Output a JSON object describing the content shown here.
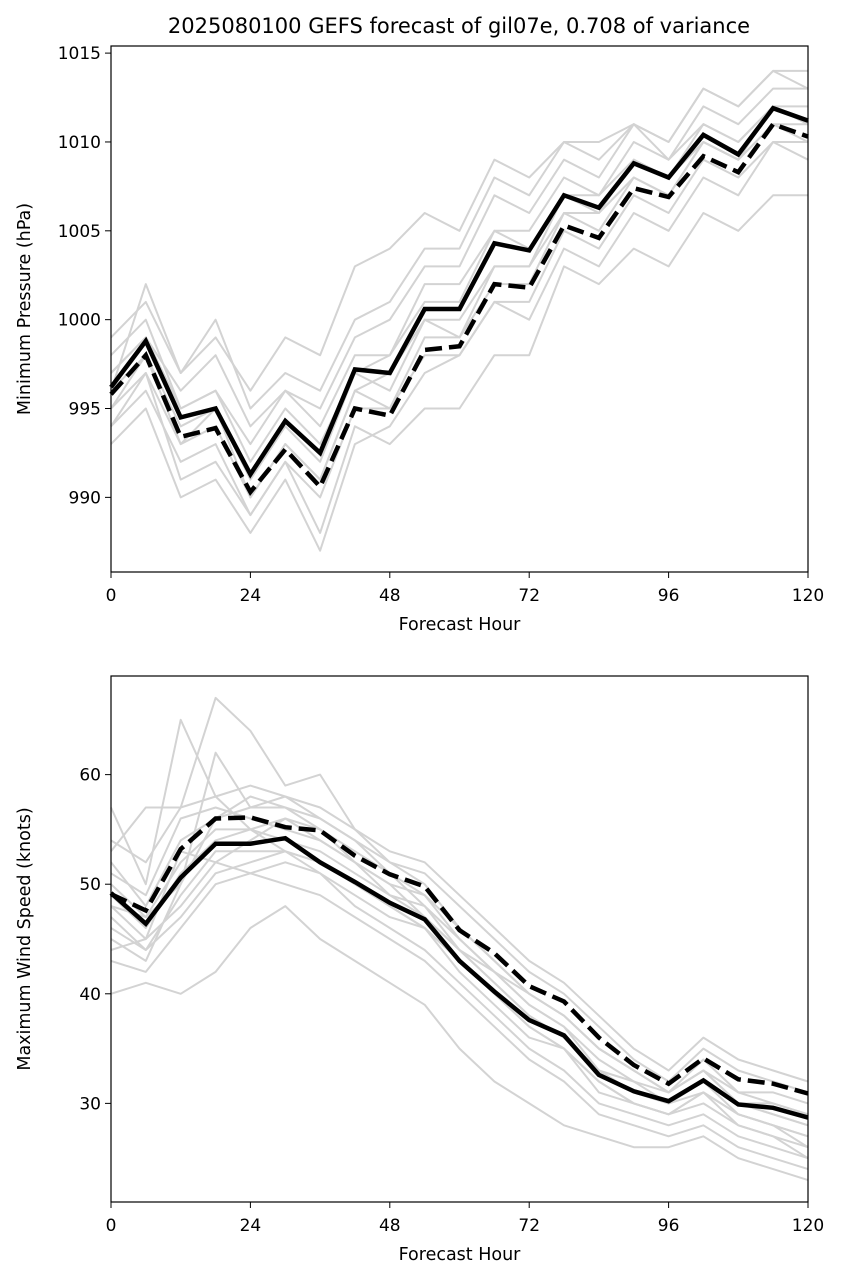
{
  "title": "2025080100 GEFS forecast of gil07e, 0.708 of variance",
  "chart_data": [
    {
      "type": "line",
      "xlabel": "Forecast Hour",
      "ylabel": "Minimum Pressure (hPa)",
      "xlim": [
        0,
        120
      ],
      "ylim": [
        985.8,
        1015.4
      ],
      "xticks": [
        0,
        24,
        48,
        72,
        96,
        120
      ],
      "yticks": [
        990,
        995,
        1000,
        1005,
        1010,
        1015
      ],
      "x": [
        0,
        6,
        12,
        18,
        24,
        30,
        36,
        42,
        48,
        54,
        60,
        66,
        72,
        78,
        84,
        90,
        96,
        102,
        108,
        114,
        120
      ],
      "series": [
        {
          "style": "solid",
          "values": [
            996.2,
            998.8,
            994.5,
            995.0,
            991.3,
            994.3,
            992.5,
            997.2,
            997.0,
            1000.6,
            1000.6,
            1004.3,
            1003.9,
            1007.0,
            1006.3,
            1008.8,
            1008.0,
            1010.4,
            1009.3,
            1011.9,
            1011.2
          ]
        },
        {
          "style": "dashed",
          "values": [
            995.8,
            998.0,
            993.4,
            993.9,
            990.3,
            992.7,
            990.6,
            995.0,
            994.6,
            998.3,
            998.5,
            1002.0,
            1001.8,
            1005.3,
            1004.6,
            1007.4,
            1006.9,
            1009.2,
            1008.3,
            1011.0,
            1010.3
          ]
        }
      ],
      "members": [
        [
          996,
          1002,
          997,
          999,
          996,
          999,
          998,
          1003,
          1004,
          1006,
          1005,
          1009,
          1008,
          1010,
          1010,
          1011,
          1010,
          1013,
          1012,
          1014,
          1014
        ],
        [
          993,
          995,
          990,
          991,
          988,
          991,
          987,
          993,
          994,
          997,
          998,
          1001,
          1000,
          1004,
          1003,
          1006,
          1005,
          1008,
          1007,
          1010,
          1009
        ],
        [
          994,
          997,
          991,
          992,
          989,
          992,
          988,
          994,
          993,
          995,
          995,
          998,
          998,
          1003,
          1002,
          1004,
          1003,
          1006,
          1005,
          1007,
          1007
        ],
        [
          997,
          999,
          996,
          998,
          994,
          996,
          995,
          999,
          1000,
          1003,
          1003,
          1007,
          1006,
          1009,
          1008,
          1011,
          1009,
          1012,
          1011,
          1013,
          1013
        ],
        [
          995,
          997,
          993,
          994,
          990,
          993,
          991,
          996,
          995,
          999,
          999,
          1002,
          1002,
          1006,
          1005,
          1008,
          1007,
          1010,
          1009,
          1011,
          1011
        ],
        [
          998,
          1000,
          995,
          996,
          992,
          995,
          993,
          997,
          998,
          1001,
          1001,
          1005,
          1004,
          1007,
          1007,
          1009,
          1008,
          1011,
          1010,
          1012,
          1012
        ],
        [
          996,
          998,
          994,
          995,
          991,
          994,
          992,
          997,
          996,
          1000,
          1000,
          1003,
          1003,
          1006,
          1006,
          1008,
          1007,
          1010,
          1009,
          1011,
          1010
        ],
        [
          999,
          1001,
          997,
          1000,
          995,
          997,
          996,
          1000,
          1001,
          1004,
          1004,
          1008,
          1007,
          1010,
          1009,
          1011,
          1010,
          1013,
          1012,
          1014,
          1013
        ],
        [
          994,
          996,
          992,
          993,
          989,
          992,
          990,
          995,
          995,
          998,
          998,
          1001,
          1001,
          1005,
          1004,
          1007,
          1006,
          1009,
          1008,
          1010,
          1010
        ],
        [
          997,
          999,
          995,
          996,
          993,
          996,
          994,
          998,
          998,
          1002,
          1002,
          1005,
          1005,
          1008,
          1007,
          1010,
          1009,
          1011,
          1010,
          1012,
          1011
        ],
        [
          995,
          998,
          993,
          995,
          990,
          993,
          991,
          996,
          997,
          1000,
          999,
          1003,
          1003,
          1007,
          1006,
          1009,
          1008,
          1010,
          1009,
          1012,
          1011
        ]
      ]
    },
    {
      "type": "line",
      "xlabel": "Forecast Hour",
      "ylabel": "Maximum Wind Speed (knots)",
      "xlim": [
        0,
        120
      ],
      "ylim": [
        21,
        69
      ],
      "xticks": [
        0,
        24,
        48,
        72,
        96,
        120
      ],
      "yticks": [
        30,
        40,
        50,
        60
      ],
      "x": [
        0,
        6,
        12,
        18,
        24,
        30,
        36,
        42,
        48,
        54,
        60,
        66,
        72,
        78,
        84,
        90,
        96,
        102,
        108,
        114,
        120
      ],
      "series": [
        {
          "style": "solid",
          "values": [
            49.2,
            46.4,
            50.6,
            53.7,
            53.7,
            54.2,
            52.0,
            50.2,
            48.3,
            46.8,
            43.0,
            40.2,
            37.6,
            36.2,
            32.6,
            31.1,
            30.2,
            32.1,
            29.9,
            29.6,
            28.7
          ]
        },
        {
          "style": "dashed",
          "values": [
            49.1,
            47.6,
            53.2,
            56.0,
            56.1,
            55.2,
            54.9,
            52.6,
            50.9,
            49.8,
            45.8,
            43.7,
            40.7,
            39.3,
            36.0,
            33.5,
            31.8,
            34.1,
            32.2,
            31.8,
            30.9
          ]
        }
      ],
      "members": [
        [
          57,
          50,
          65,
          58,
          55,
          53,
          52,
          50,
          48,
          46,
          43,
          40,
          37,
          35,
          32,
          30,
          29,
          31,
          28,
          27,
          25
        ],
        [
          40,
          41,
          40,
          42,
          46,
          48,
          45,
          43,
          41,
          39,
          35,
          32,
          30,
          28,
          27,
          26,
          26,
          27,
          25,
          24,
          23
        ],
        [
          53,
          57,
          57,
          67,
          64,
          59,
          60,
          55,
          52,
          50,
          46,
          43,
          40,
          38,
          35,
          33,
          31,
          33,
          30,
          29,
          28
        ],
        [
          45,
          43,
          50,
          62,
          57,
          58,
          56,
          54,
          51,
          49,
          45,
          42,
          39,
          37,
          33,
          31,
          30,
          32,
          29,
          28,
          27
        ],
        [
          48,
          45,
          48,
          52,
          54,
          56,
          55,
          52,
          50,
          47,
          44,
          41,
          38,
          36,
          33,
          31,
          30,
          31,
          29,
          28,
          26
        ],
        [
          52,
          48,
          54,
          56,
          58,
          57,
          56,
          54,
          52,
          51,
          48,
          45,
          42,
          40,
          37,
          34,
          32,
          35,
          33,
          32,
          31
        ],
        [
          43,
          42,
          46,
          50,
          51,
          52,
          51,
          48,
          46,
          44,
          41,
          38,
          35,
          33,
          30,
          29,
          28,
          29,
          27,
          26,
          25
        ],
        [
          50,
          47,
          52,
          55,
          55,
          54,
          53,
          51,
          49,
          47,
          44,
          41,
          38,
          36,
          33,
          32,
          31,
          33,
          30,
          30,
          29
        ],
        [
          47,
          44,
          49,
          53,
          53,
          53,
          51,
          49,
          47,
          46,
          42,
          39,
          36,
          35,
          31,
          30,
          29,
          31,
          29,
          28,
          27
        ],
        [
          51,
          49,
          56,
          57,
          56,
          55,
          54,
          52,
          50,
          49,
          46,
          43,
          40,
          38,
          35,
          33,
          31,
          34,
          31,
          31,
          30
        ],
        [
          46,
          44,
          47,
          51,
          52,
          53,
          52,
          50,
          48,
          46,
          43,
          40,
          37,
          35,
          32,
          30,
          29,
          30,
          28,
          27,
          26
        ],
        [
          49,
          46,
          51,
          54,
          55,
          56,
          54,
          52,
          49,
          48,
          44,
          42,
          39,
          37,
          34,
          32,
          30,
          32,
          30,
          29,
          28
        ],
        [
          44,
          45,
          53,
          52,
          51,
          50,
          49,
          47,
          45,
          43,
          40,
          37,
          34,
          32,
          29,
          28,
          27,
          28,
          26,
          25,
          24
        ],
        [
          54,
          52,
          57,
          58,
          59,
          58,
          57,
          55,
          53,
          52,
          49,
          46,
          43,
          41,
          38,
          35,
          33,
          36,
          34,
          33,
          32
        ],
        [
          48,
          47,
          50,
          56,
          57,
          57,
          55,
          53,
          51,
          48,
          45,
          42,
          40,
          38,
          35,
          33,
          31,
          33,
          31,
          30,
          29
        ]
      ]
    }
  ]
}
